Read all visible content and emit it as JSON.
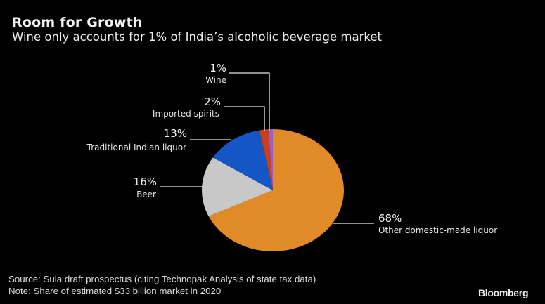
{
  "chart_data": {
    "type": "pie",
    "title": "Room for Growth",
    "subtitle": "Wine only accounts for 1% of India’s alcoholic beverage market",
    "start": "top",
    "direction": "clockwise",
    "slices": [
      {
        "name": "Other domestic-made liquor",
        "value": 68,
        "label": "68%",
        "color": "#e08a28"
      },
      {
        "name": "Beer",
        "value": 16,
        "label": "16%",
        "color": "#c8c8c8"
      },
      {
        "name": "Traditional Indian liquor",
        "value": 13,
        "label": "13%",
        "color": "#1457c4"
      },
      {
        "name": "Imported spirits",
        "value": 2,
        "label": "2%",
        "color": "#c8401e"
      },
      {
        "name": "Wine",
        "value": 1,
        "label": "1%",
        "color": "#9a5fcf"
      }
    ],
    "source": "Source: Sula draft prospectus (citing Technopak Analysis of state tax data)",
    "note": "Note: Share of estimated $33 billion market in 2020",
    "brand": "Bloomberg"
  }
}
